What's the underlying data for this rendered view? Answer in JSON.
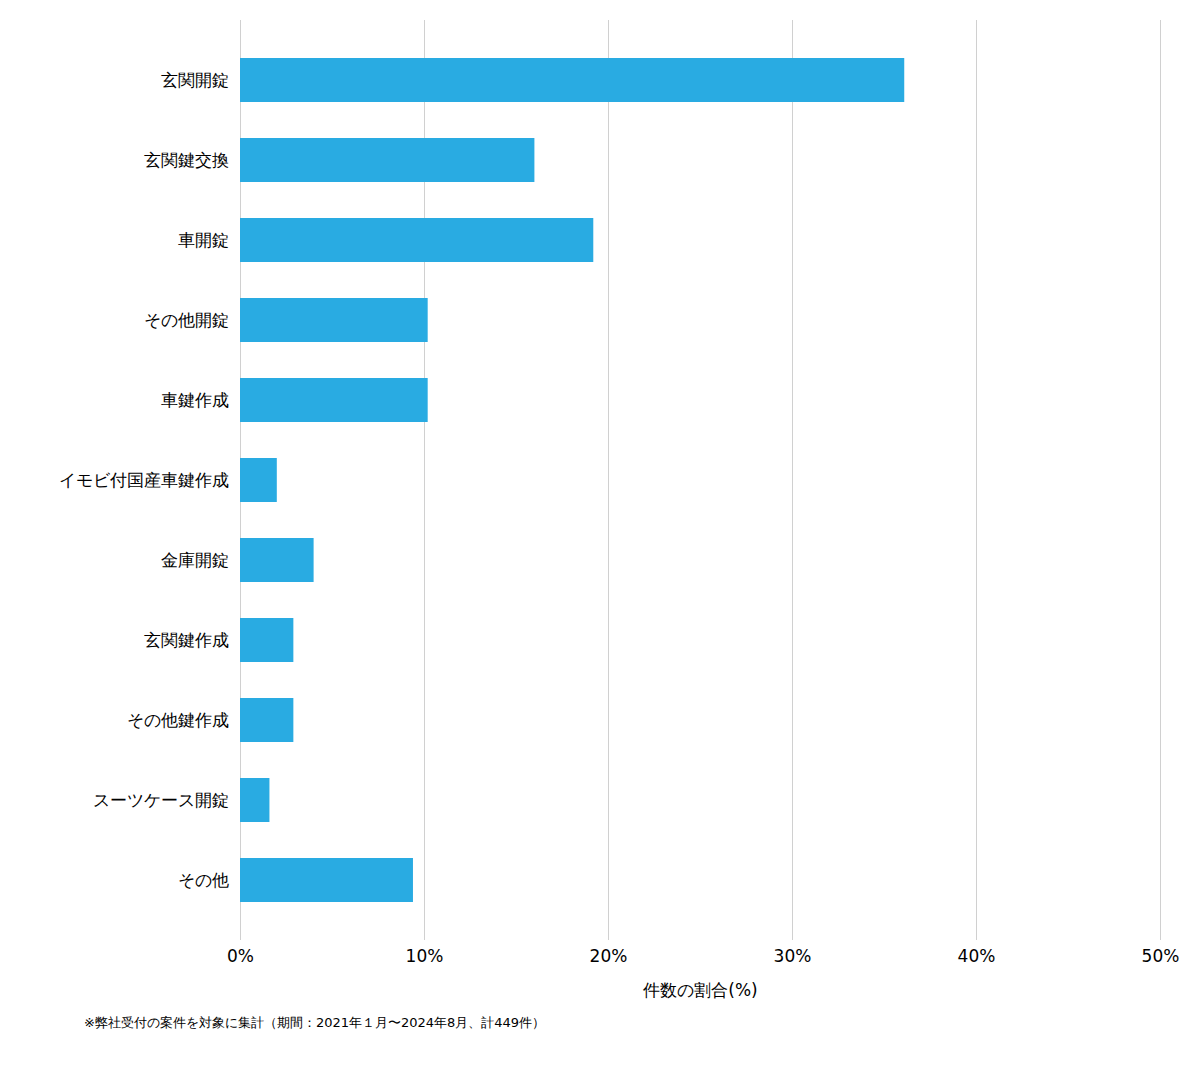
{
  "chart_data": {
    "type": "bar",
    "orientation": "horizontal",
    "categories": [
      "玄関開錠",
      "玄関鍵交換",
      "車開錠",
      "その他開錠",
      "車鍵作成",
      "イモビ付国産車鍵作成",
      "金庫開錠",
      "玄関鍵作成",
      "その他鍵作成",
      "スーツケース開錠",
      "その他"
    ],
    "values": [
      36.1,
      16.0,
      19.2,
      10.2,
      10.2,
      2.0,
      4.0,
      2.9,
      2.9,
      1.6,
      9.4
    ],
    "color": "#29ABE2",
    "xlabel": "件数の割合(%)",
    "xlim": [
      0,
      50
    ],
    "xticks": [
      {
        "value": 0,
        "label": "0%"
      },
      {
        "value": 10,
        "label": "10%"
      },
      {
        "value": 20,
        "label": "20%"
      },
      {
        "value": 30,
        "label": "30%"
      },
      {
        "value": 40,
        "label": "40%"
      },
      {
        "value": 50,
        "label": "50%"
      }
    ],
    "grid": true,
    "annotations": [
      "※弊社受付の案件を対象に集計（期間：2021年１月〜2024年8月、計449件）"
    ]
  }
}
